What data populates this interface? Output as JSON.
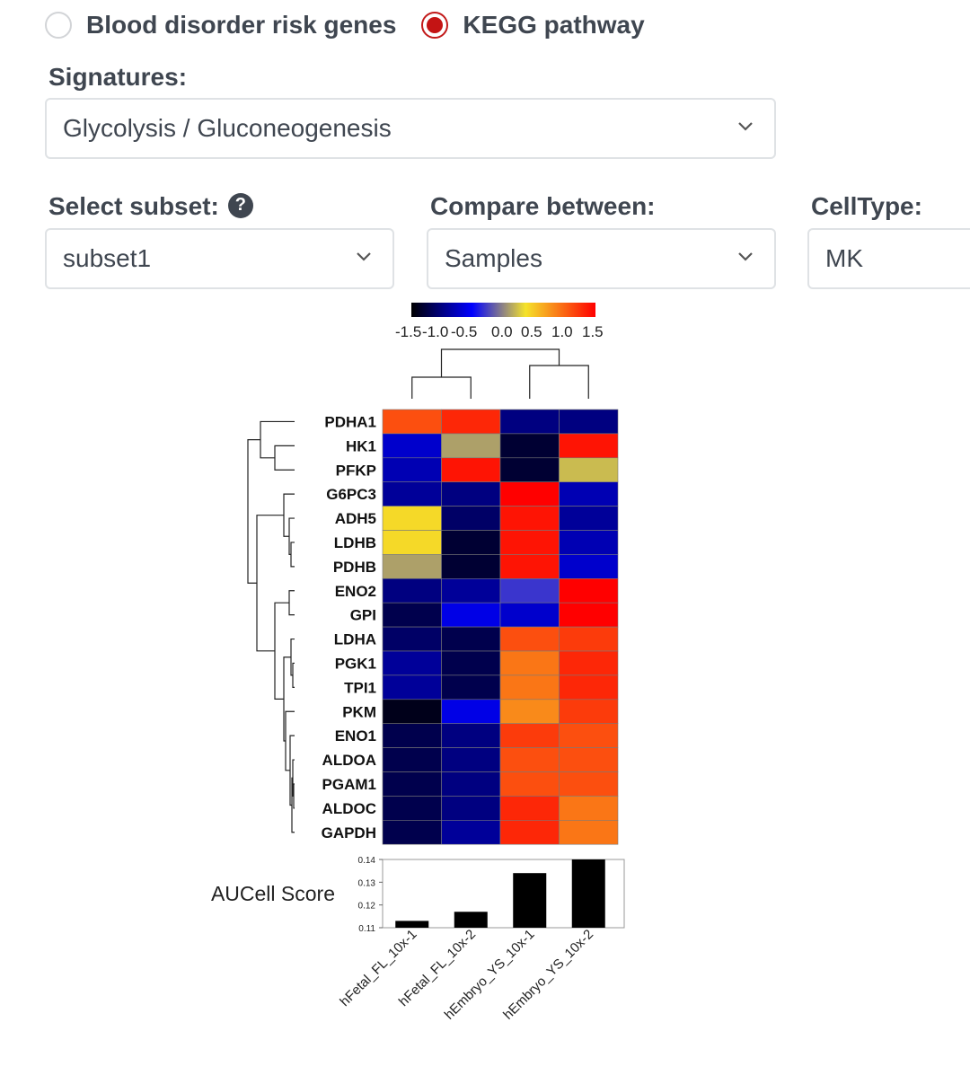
{
  "signature_type": {
    "options": [
      {
        "label": "Blood disorder risk genes",
        "checked": false
      },
      {
        "label": "KEGG pathway",
        "checked": true
      }
    ]
  },
  "signatures": {
    "label": "Signatures:",
    "value": "Glycolysis / Gluconeogenesis"
  },
  "subset": {
    "label": "Select subset:",
    "help_icon": "question-circle-icon",
    "value": "subset1"
  },
  "compare": {
    "label": "Compare between:",
    "value": "Samples"
  },
  "celltype": {
    "label": "CellType:",
    "value": "MK"
  },
  "chart_data": [
    {
      "type": "heatmap",
      "colorbar": {
        "ticks": [
          "-1.5",
          "-1.0",
          "-0.5",
          "0.0",
          "0.5",
          "1.0",
          "1.5"
        ],
        "range": [
          -1.5,
          1.5
        ],
        "colors": [
          "#000000",
          "#0000ff",
          "#f5e32a",
          "#ff0000"
        ]
      },
      "columns": [
        "hFetal_FL_10x-1",
        "hFetal_FL_10x-2",
        "hEmbryo_YS_10x-1",
        "hEmbryo_YS_10x-2"
      ],
      "rows": [
        "PDHA1",
        "HK1",
        "PFKP",
        "G6PC3",
        "ADH5",
        "LDHB",
        "PDHB",
        "ENO2",
        "GPI",
        "LDHA",
        "PGK1",
        "TPI1",
        "PKM",
        "ENO1",
        "ALDOA",
        "PGAM1",
        "ALDOC",
        "GAPDH"
      ],
      "values": [
        [
          1.1,
          1.3,
          -1.0,
          -1.0
        ],
        [
          -0.7,
          0.1,
          -1.3,
          1.4
        ],
        [
          -0.8,
          1.4,
          -1.3,
          0.2
        ],
        [
          -0.9,
          -1.0,
          1.5,
          -0.8
        ],
        [
          0.4,
          -1.1,
          1.4,
          -0.9
        ],
        [
          0.4,
          -1.3,
          1.4,
          -0.8
        ],
        [
          0.1,
          -1.3,
          1.4,
          -0.7
        ],
        [
          -1.0,
          -0.9,
          -0.3,
          1.5
        ],
        [
          -1.2,
          -0.6,
          -0.7,
          1.5
        ],
        [
          -1.1,
          -1.2,
          1.1,
          1.2
        ],
        [
          -0.9,
          -1.2,
          0.9,
          1.3
        ],
        [
          -0.9,
          -1.2,
          0.9,
          1.3
        ],
        [
          -1.4,
          -0.6,
          0.8,
          1.2
        ],
        [
          -1.2,
          -1.0,
          1.2,
          1.1
        ],
        [
          -1.2,
          -1.0,
          1.1,
          1.1
        ],
        [
          -1.2,
          -1.0,
          1.1,
          1.1
        ],
        [
          -1.2,
          -1.0,
          1.3,
          0.9
        ],
        [
          -1.2,
          -0.9,
          1.3,
          0.9
        ]
      ]
    },
    {
      "type": "bar",
      "ylabel": "AUCell Score",
      "categories": [
        "hFetal_FL_10x-1",
        "hFetal_FL_10x-2",
        "hEmbryo_YS_10x-1",
        "hEmbryo_YS_10x-2"
      ],
      "values": [
        0.113,
        0.117,
        0.134,
        0.14
      ],
      "ylim": [
        0.11,
        0.14
      ],
      "yticks": [
        "0.11",
        "0.12",
        "0.13",
        "0.14"
      ],
      "color": "#000000"
    }
  ]
}
